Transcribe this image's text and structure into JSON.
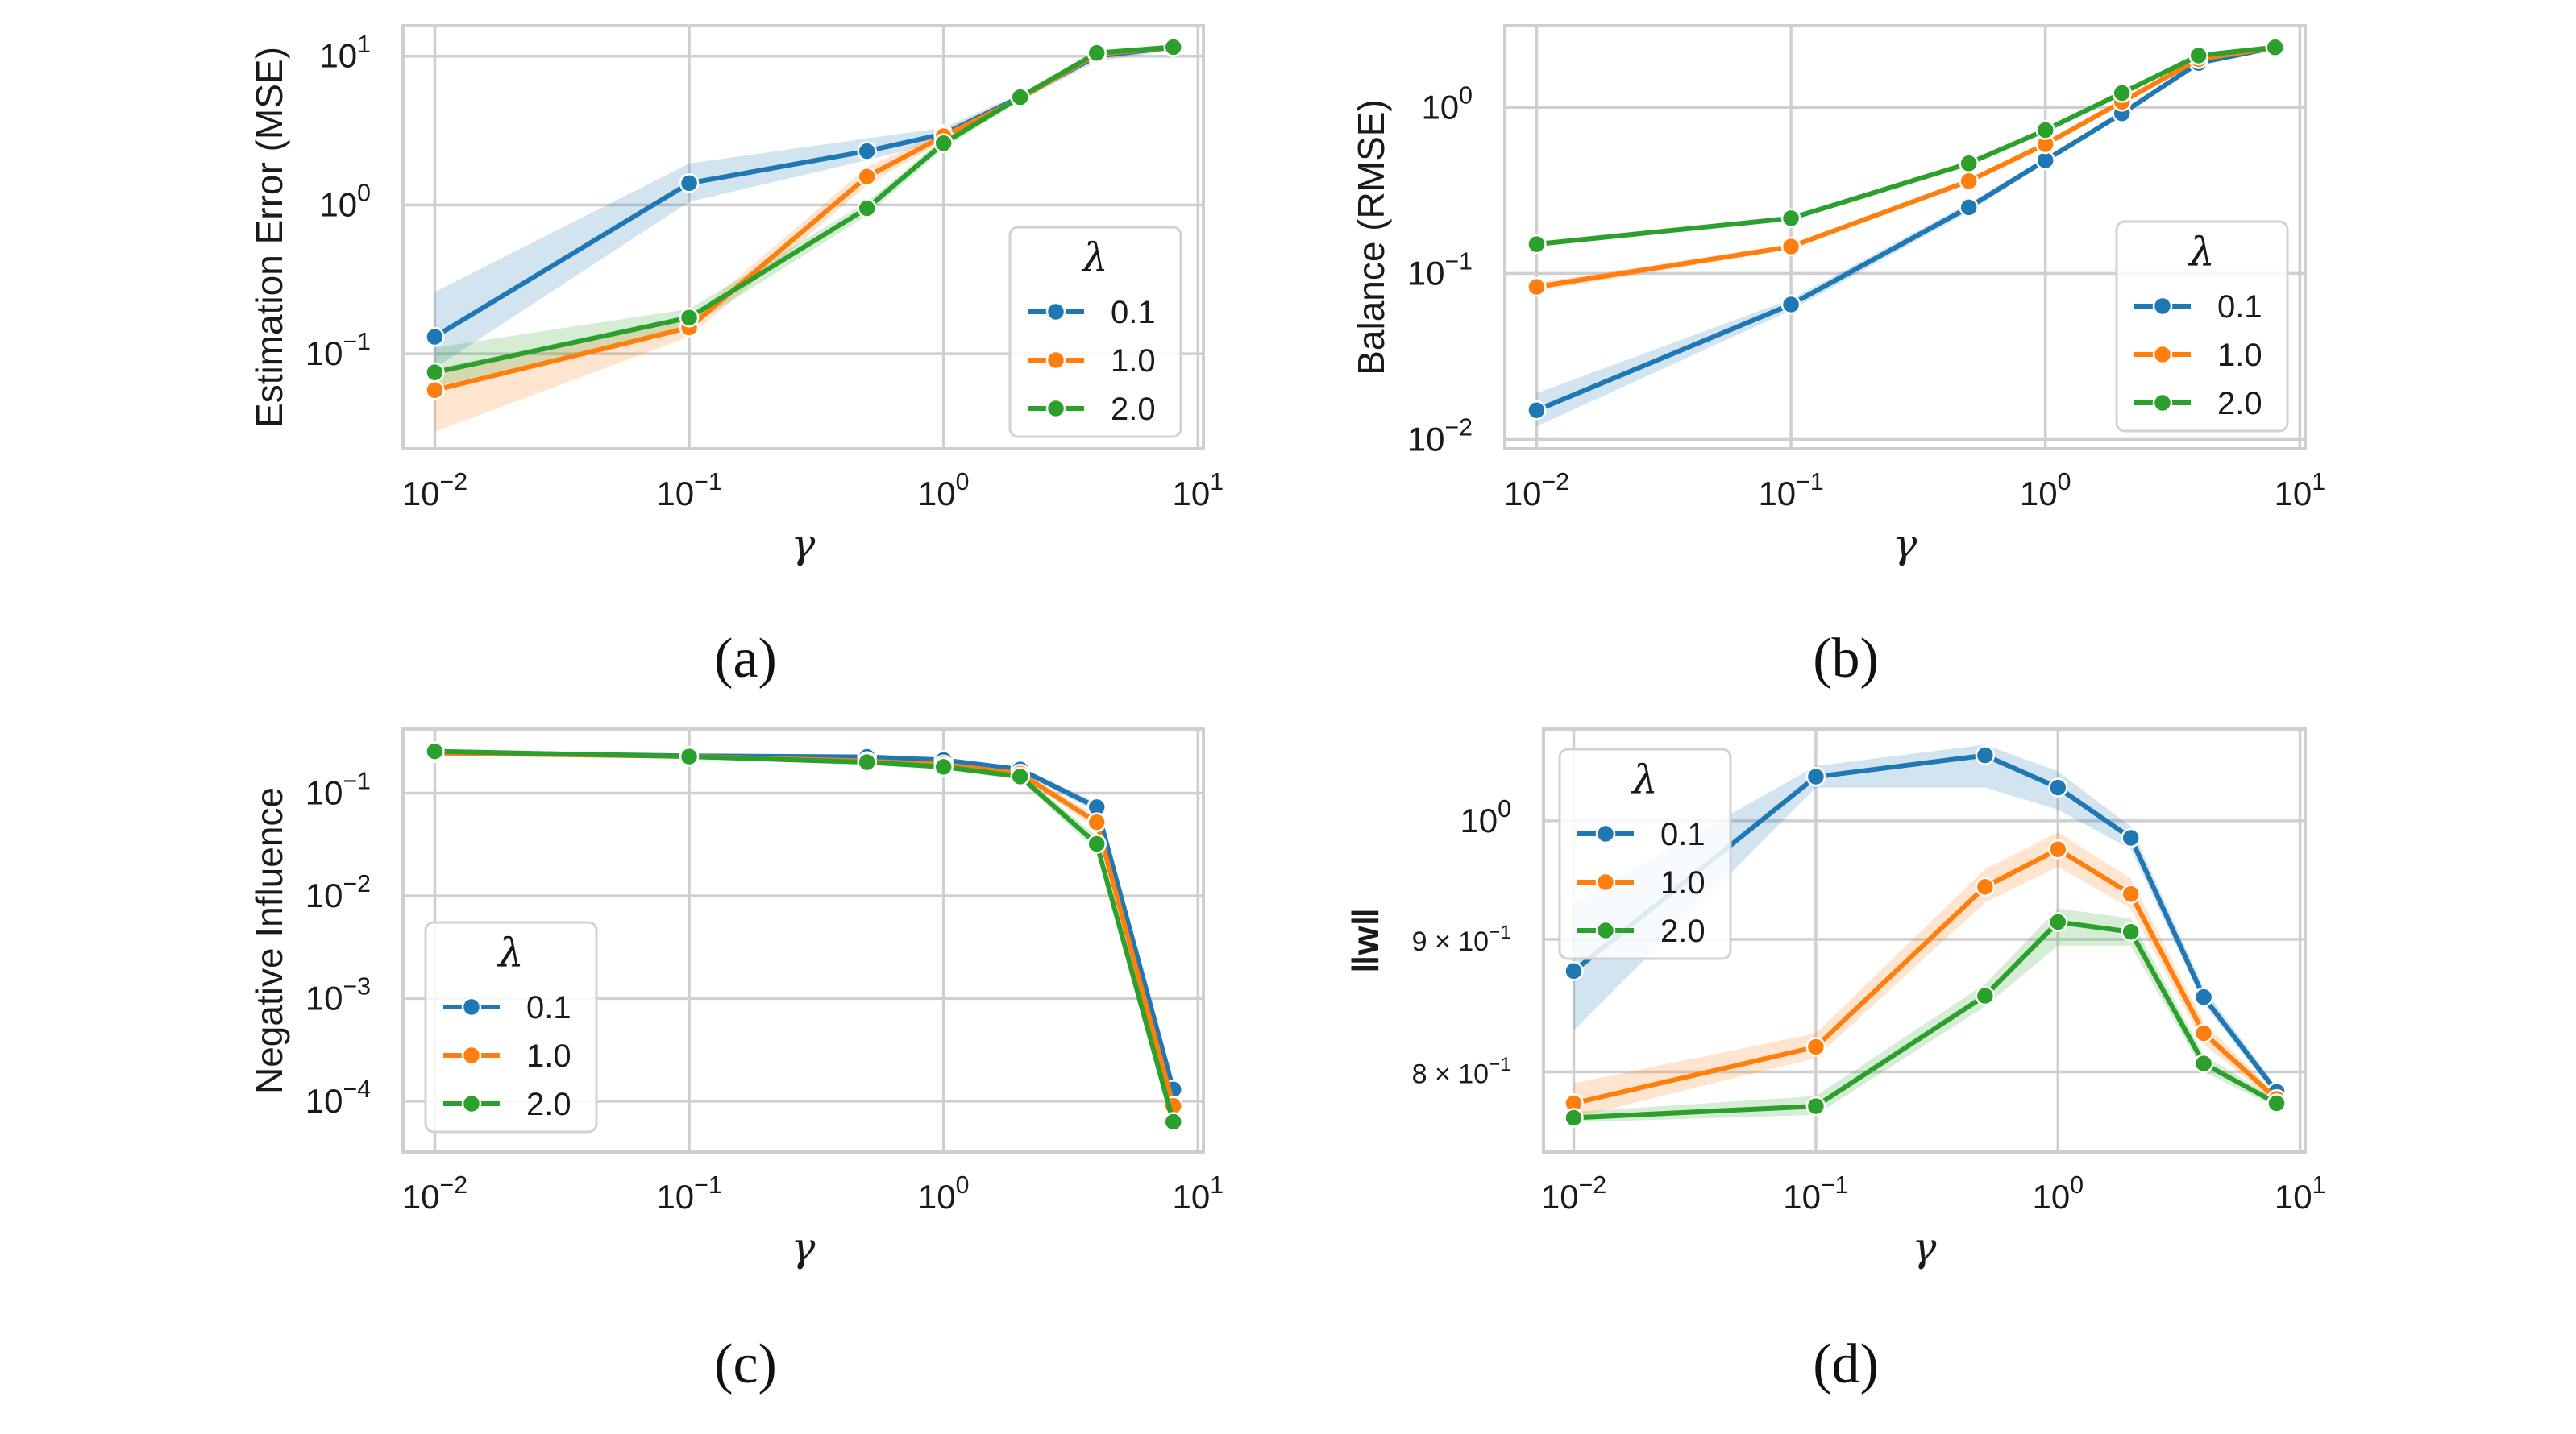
{
  "colors": {
    "series_0.1": "#1f77b4",
    "series_1.0": "#ff7f0e",
    "series_2.0": "#2ca02c"
  },
  "chart_data": [
    {
      "id": "a",
      "type": "line",
      "caption": "(a)",
      "xlabel": "γ",
      "ylabel": "Estimation Error (MSE)",
      "xscale": "log",
      "yscale": "log",
      "x": [
        0.01,
        0.1,
        0.5,
        1,
        2,
        4,
        8
      ],
      "xlim": [
        0.0075,
        10.5
      ],
      "ylim": [
        0.023,
        16
      ],
      "yticks": [
        0.1,
        1,
        10
      ],
      "xtick_labels": [
        {
          "value": 0.01,
          "base": "10",
          "exp": "−2"
        },
        {
          "value": 0.1,
          "base": "10",
          "exp": "−1"
        },
        {
          "value": 1,
          "base": "10",
          "exp": "0"
        },
        {
          "value": 10,
          "base": "10",
          "exp": "1"
        }
      ],
      "ytick_labels": [
        {
          "value": 0.1,
          "base": "10",
          "exp": "−1"
        },
        {
          "value": 1,
          "base": "10",
          "exp": "0"
        },
        {
          "value": 10,
          "base": "10",
          "exp": "1"
        }
      ],
      "legend": {
        "title": "λ",
        "position": "center-right"
      },
      "series": [
        {
          "name": "0.1",
          "values": [
            0.13,
            1.4,
            2.3,
            3.0,
            5.3,
            10.0,
            11.5
          ],
          "lower": [
            0.08,
            1.05,
            2.0,
            2.7,
            5.0,
            9.2,
            11.0
          ],
          "upper": [
            0.26,
            1.9,
            2.8,
            3.3,
            5.6,
            10.6,
            12.0
          ]
        },
        {
          "name": "1.0",
          "values": [
            0.057,
            0.15,
            1.55,
            2.9,
            5.2,
            10.3,
            11.5
          ],
          "lower": [
            0.03,
            0.13,
            1.35,
            2.7,
            5.0,
            9.9,
            11.0
          ],
          "upper": [
            0.08,
            0.17,
            1.8,
            3.1,
            5.5,
            10.8,
            12.0
          ]
        },
        {
          "name": "2.0",
          "values": [
            0.075,
            0.175,
            0.95,
            2.6,
            5.3,
            10.5,
            11.5
          ],
          "lower": [
            0.06,
            0.15,
            0.85,
            2.4,
            5.0,
            10.1,
            11.0
          ],
          "upper": [
            0.11,
            0.2,
            1.05,
            2.8,
            5.6,
            10.9,
            12.0
          ]
        }
      ]
    },
    {
      "id": "b",
      "type": "line",
      "caption": "(b)",
      "xlabel": "γ",
      "ylabel": "Balance (RMSE)",
      "xscale": "log",
      "yscale": "log",
      "x": [
        0.01,
        0.1,
        0.5,
        1,
        2,
        4,
        8
      ],
      "xlim": [
        0.0075,
        10.5
      ],
      "ylim": [
        0.0088,
        3.1
      ],
      "yticks": [
        0.01,
        0.1,
        1
      ],
      "xtick_labels": [
        {
          "value": 0.01,
          "base": "10",
          "exp": "−2"
        },
        {
          "value": 0.1,
          "base": "10",
          "exp": "−1"
        },
        {
          "value": 1,
          "base": "10",
          "exp": "0"
        },
        {
          "value": 10,
          "base": "10",
          "exp": "1"
        }
      ],
      "ytick_labels": [
        {
          "value": 0.01,
          "base": "10",
          "exp": "−2"
        },
        {
          "value": 0.1,
          "base": "10",
          "exp": "−1"
        },
        {
          "value": 1,
          "base": "10",
          "exp": "0"
        }
      ],
      "legend": {
        "title": "λ",
        "position": "lower-right"
      },
      "series": [
        {
          "name": "0.1",
          "values": [
            0.015,
            0.065,
            0.25,
            0.48,
            0.92,
            1.85,
            2.3
          ],
          "lower": [
            0.012,
            0.06,
            0.235,
            0.46,
            0.89,
            1.8,
            2.25
          ],
          "upper": [
            0.019,
            0.07,
            0.265,
            0.5,
            0.95,
            1.9,
            2.35
          ]
        },
        {
          "name": "1.0",
          "values": [
            0.083,
            0.145,
            0.36,
            0.6,
            1.08,
            1.95,
            2.3
          ],
          "lower": [
            0.078,
            0.14,
            0.35,
            0.58,
            1.05,
            1.9,
            2.25
          ],
          "upper": [
            0.088,
            0.15,
            0.37,
            0.62,
            1.11,
            2.0,
            2.35
          ]
        },
        {
          "name": "2.0",
          "values": [
            0.15,
            0.215,
            0.46,
            0.73,
            1.22,
            2.05,
            2.3
          ],
          "lower": [
            0.145,
            0.21,
            0.45,
            0.71,
            1.19,
            2.0,
            2.25
          ],
          "upper": [
            0.155,
            0.22,
            0.47,
            0.75,
            1.25,
            2.1,
            2.35
          ]
        }
      ]
    },
    {
      "id": "c",
      "type": "line",
      "caption": "(c)",
      "xlabel": "γ",
      "ylabel": "Negative Influence",
      "xscale": "log",
      "yscale": "log",
      "x": [
        0.01,
        0.1,
        0.5,
        1,
        2,
        4,
        8
      ],
      "xlim": [
        0.0075,
        10.5
      ],
      "ylim": [
        3.2e-05,
        0.42
      ],
      "yticks": [
        0.0001,
        0.001,
        0.01,
        0.1
      ],
      "xtick_labels": [
        {
          "value": 0.01,
          "base": "10",
          "exp": "−2"
        },
        {
          "value": 0.1,
          "base": "10",
          "exp": "−1"
        },
        {
          "value": 1,
          "base": "10",
          "exp": "0"
        },
        {
          "value": 10,
          "base": "10",
          "exp": "1"
        }
      ],
      "ytick_labels": [
        {
          "value": 0.0001,
          "base": "10",
          "exp": "−4"
        },
        {
          "value": 0.001,
          "base": "10",
          "exp": "−3"
        },
        {
          "value": 0.01,
          "base": "10",
          "exp": "−2"
        },
        {
          "value": 0.1,
          "base": "10",
          "exp": "−1"
        }
      ],
      "legend": {
        "title": "λ",
        "position": "lower-left"
      },
      "series": [
        {
          "name": "0.1",
          "values": [
            0.25,
            0.23,
            0.225,
            0.21,
            0.17,
            0.073,
            0.00013
          ],
          "lower": [
            0.24,
            0.22,
            0.215,
            0.2,
            0.16,
            0.065,
            0.00011
          ],
          "upper": [
            0.26,
            0.24,
            0.235,
            0.22,
            0.18,
            0.08,
            0.00015
          ]
        },
        {
          "name": "1.0",
          "values": [
            0.245,
            0.228,
            0.205,
            0.19,
            0.155,
            0.052,
            9e-05
          ],
          "lower": [
            0.235,
            0.218,
            0.195,
            0.18,
            0.145,
            0.045,
            7e-05
          ],
          "upper": [
            0.255,
            0.238,
            0.215,
            0.2,
            0.165,
            0.06,
            0.00011
          ]
        },
        {
          "name": "2.0",
          "values": [
            0.255,
            0.227,
            0.2,
            0.18,
            0.145,
            0.032,
            6.3e-05
          ],
          "lower": [
            0.245,
            0.217,
            0.19,
            0.17,
            0.135,
            0.027,
            5e-05
          ],
          "upper": [
            0.265,
            0.237,
            0.21,
            0.19,
            0.155,
            0.038,
            8e-05
          ]
        }
      ]
    },
    {
      "id": "d",
      "type": "line",
      "caption": "(d)",
      "xlabel": "γ",
      "ylabel": "‖w‖",
      "xscale": "log",
      "yscale": "log",
      "x": [
        0.01,
        0.1,
        0.5,
        1,
        2,
        4,
        8
      ],
      "xlim": [
        0.0075,
        10.5
      ],
      "ylim": [
        0.745,
        1.085
      ],
      "yticks": [
        0.8,
        0.9,
        1.0
      ],
      "xtick_labels": [
        {
          "value": 0.01,
          "base": "10",
          "exp": "−2"
        },
        {
          "value": 0.1,
          "base": "10",
          "exp": "−1"
        },
        {
          "value": 1,
          "base": "10",
          "exp": "0"
        },
        {
          "value": 10,
          "base": "10",
          "exp": "1"
        }
      ],
      "ytick_labels": [
        {
          "value": 0.8,
          "base": "8 × 10",
          "exp": "−1"
        },
        {
          "value": 0.9,
          "base": "9 × 10",
          "exp": "−1"
        },
        {
          "value": 1.0,
          "base": "10",
          "exp": "0"
        }
      ],
      "legend": {
        "title": "λ",
        "position": "upper-left"
      },
      "series": [
        {
          "name": "0.1",
          "values": [
            0.875,
            1.04,
            1.06,
            1.03,
            0.985,
            0.855,
            0.786
          ],
          "lower": [
            0.83,
            1.03,
            1.03,
            1.01,
            0.975,
            0.85,
            0.783
          ],
          "upper": [
            0.93,
            1.05,
            1.07,
            1.045,
            0.995,
            0.862,
            0.789
          ]
        },
        {
          "name": "1.0",
          "values": [
            0.778,
            0.818,
            0.943,
            0.975,
            0.937,
            0.828,
            0.781
          ],
          "lower": [
            0.768,
            0.81,
            0.93,
            0.96,
            0.925,
            0.82,
            0.778
          ],
          "upper": [
            0.792,
            0.828,
            0.958,
            0.99,
            0.95,
            0.836,
            0.784
          ]
        },
        {
          "name": "2.0",
          "values": [
            0.768,
            0.776,
            0.856,
            0.914,
            0.906,
            0.806,
            0.778
          ],
          "lower": [
            0.765,
            0.77,
            0.848,
            0.895,
            0.895,
            0.8,
            0.775
          ],
          "upper": [
            0.772,
            0.783,
            0.865,
            0.925,
            0.917,
            0.812,
            0.781
          ]
        }
      ]
    }
  ]
}
